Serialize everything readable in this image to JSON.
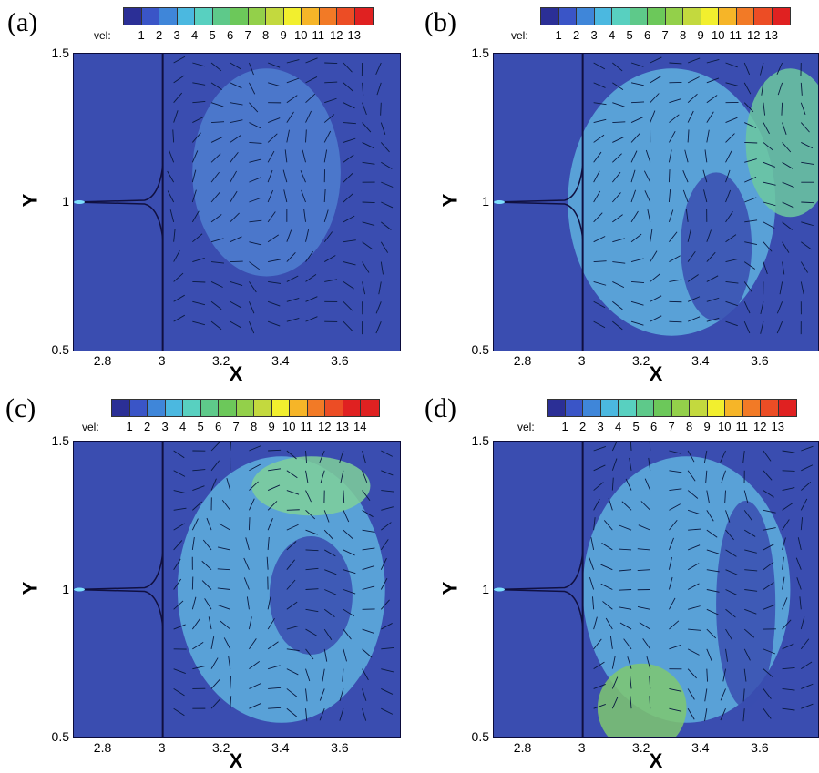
{
  "chart_data": [
    {
      "panel_label": "(a)",
      "type": "heatmap",
      "title": "",
      "xlabel": "X",
      "ylabel": "Y",
      "xlim": [
        2.7,
        3.8
      ],
      "ylim": [
        0.5,
        1.5
      ],
      "x_ticks": [
        "2.8",
        "3",
        "3.2",
        "3.4",
        "3.6"
      ],
      "y_ticks": [
        "0.5",
        "1",
        "1.5"
      ],
      "colorbar_title": "vel:",
      "colorbar_levels": [
        "1",
        "2",
        "3",
        "4",
        "5",
        "6",
        "7",
        "8",
        "9",
        "10",
        "11",
        "12",
        "13"
      ],
      "overlay": "velocity vectors",
      "vertical_wall_x": 3.0
    },
    {
      "panel_label": "(b)",
      "type": "heatmap",
      "title": "",
      "xlabel": "X",
      "ylabel": "Y",
      "xlim": [
        2.7,
        3.8
      ],
      "ylim": [
        0.5,
        1.5
      ],
      "x_ticks": [
        "2.8",
        "3",
        "3.2",
        "3.4",
        "3.6"
      ],
      "y_ticks": [
        "0.5",
        "1",
        "1.5"
      ],
      "colorbar_title": "vel:",
      "colorbar_levels": [
        "1",
        "2",
        "3",
        "4",
        "5",
        "6",
        "7",
        "8",
        "9",
        "10",
        "11",
        "12",
        "13"
      ],
      "overlay": "velocity vectors",
      "vertical_wall_x": 3.0
    },
    {
      "panel_label": "(c)",
      "type": "heatmap",
      "title": "",
      "xlabel": "X",
      "ylabel": "Y",
      "xlim": [
        2.7,
        3.8
      ],
      "ylim": [
        0.5,
        1.5
      ],
      "x_ticks": [
        "2.8",
        "3",
        "3.2",
        "3.4",
        "3.6"
      ],
      "y_ticks": [
        "0.5",
        "1",
        "1.5"
      ],
      "colorbar_title": "vel:",
      "colorbar_levels": [
        "1",
        "2",
        "3",
        "4",
        "5",
        "6",
        "7",
        "8",
        "9",
        "10",
        "11",
        "12",
        "13",
        "14"
      ],
      "overlay": "velocity vectors",
      "vertical_wall_x": 3.0
    },
    {
      "panel_label": "(d)",
      "type": "heatmap",
      "title": "",
      "xlabel": "X",
      "ylabel": "Y",
      "xlim": [
        2.7,
        3.8
      ],
      "ylim": [
        0.5,
        1.5
      ],
      "x_ticks": [
        "2.8",
        "3",
        "3.2",
        "3.4",
        "3.6"
      ],
      "y_ticks": [
        "0.5",
        "1",
        "1.5"
      ],
      "colorbar_title": "vel:",
      "colorbar_levels": [
        "1",
        "2",
        "3",
        "4",
        "5",
        "6",
        "7",
        "8",
        "9",
        "10",
        "11",
        "12",
        "13"
      ],
      "overlay": "velocity vectors",
      "vertical_wall_x": 3.0
    }
  ],
  "palette": [
    "#2b2f96",
    "#3a55c7",
    "#3f86d9",
    "#4bb8e0",
    "#58d0c0",
    "#5ec98a",
    "#6cc85a",
    "#93d04a",
    "#c3d93e",
    "#f2ef2e",
    "#f6b528",
    "#f27a26",
    "#ec4d25",
    "#e02121"
  ]
}
